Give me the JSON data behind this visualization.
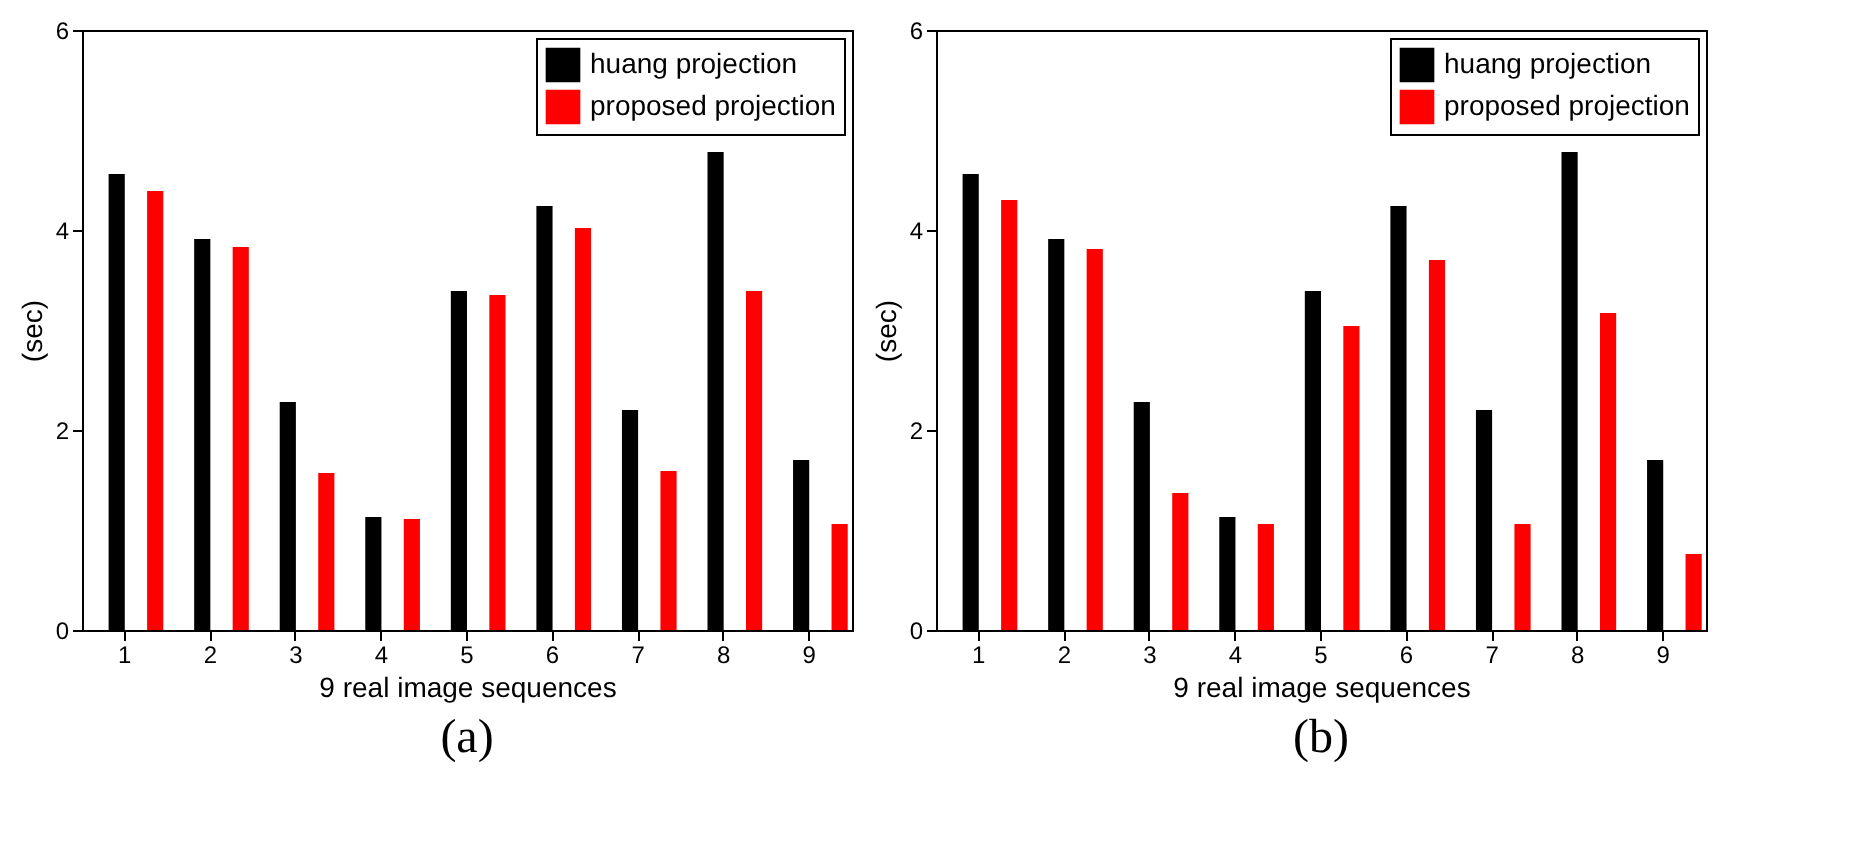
{
  "chart_data": [
    {
      "type": "bar",
      "title": "(a)",
      "xlabel": "9 real image sequences",
      "ylabel": "(sec)",
      "categories": [
        "1",
        "2",
        "3",
        "4",
        "5",
        "6",
        "7",
        "8",
        "9"
      ],
      "ylim": [
        0,
        6
      ],
      "yticks": [
        0,
        2,
        4,
        6
      ],
      "legend": "top right",
      "series": [
        {
          "name": "huang projection",
          "color": "#000000",
          "values": [
            4.56,
            3.91,
            2.28,
            1.13,
            3.39,
            4.24,
            2.2,
            4.78,
            1.7
          ]
        },
        {
          "name": "proposed projection",
          "color": "#ff0000",
          "values": [
            4.39,
            3.83,
            1.57,
            1.11,
            3.35,
            4.02,
            1.59,
            3.39,
            1.06
          ]
        }
      ]
    },
    {
      "type": "bar",
      "title": "(b)",
      "xlabel": "9 real image sequences",
      "ylabel": "(sec)",
      "categories": [
        "1",
        "2",
        "3",
        "4",
        "5",
        "6",
        "7",
        "8",
        "9"
      ],
      "ylim": [
        0,
        6
      ],
      "yticks": [
        0,
        2,
        4,
        6
      ],
      "legend": "top right",
      "series": [
        {
          "name": "huang projection",
          "color": "#000000",
          "values": [
            4.56,
            3.91,
            2.28,
            1.13,
            3.39,
            4.24,
            2.2,
            4.78,
            1.7
          ]
        },
        {
          "name": "proposed projection",
          "color": "#ff0000",
          "values": [
            4.3,
            3.81,
            1.37,
            1.06,
            3.04,
            3.7,
            1.06,
            3.17,
            0.76
          ]
        }
      ]
    }
  ]
}
